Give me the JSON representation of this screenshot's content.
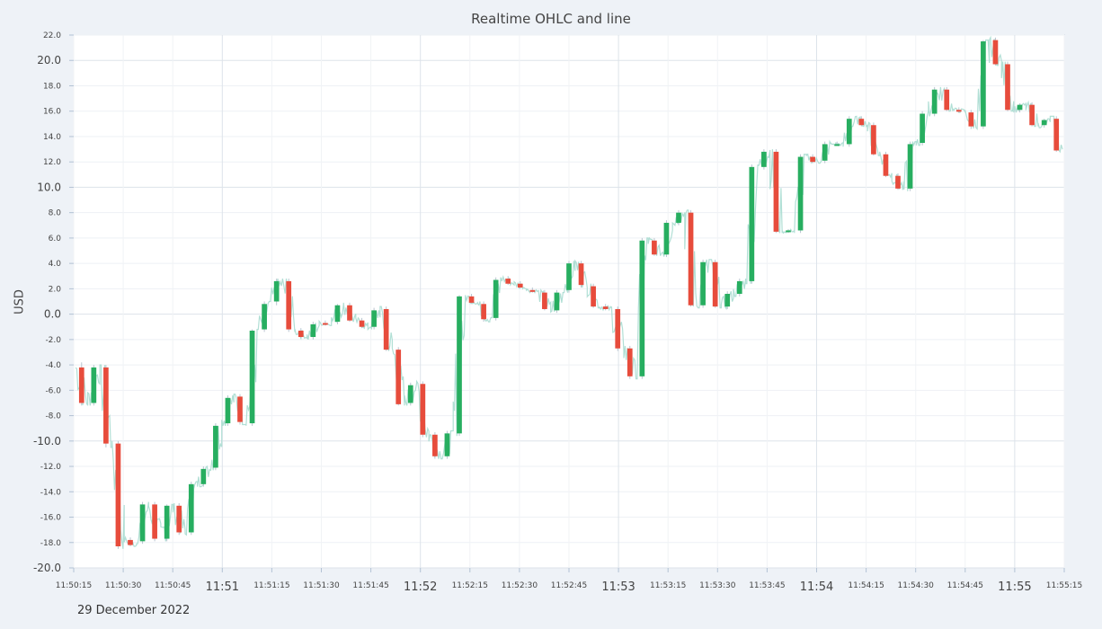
{
  "chart_data": {
    "type": "candlestick",
    "title": "Realtime OHLC and line",
    "ylabel": "USD",
    "xlabel": "",
    "date_label": "29 December 2022",
    "ylim": [
      -20,
      22
    ],
    "y_ticks_major": [
      "-20.0",
      "-10.0",
      "0.0",
      "10.0",
      "20.0"
    ],
    "y_ticks_minor": [
      "-18.0",
      "-16.0",
      "-14.0",
      "-12.0",
      "-8.0",
      "-6.0",
      "-4.0",
      "-2.0",
      "2.0",
      "4.0",
      "6.0",
      "8.0",
      "12.0",
      "14.0",
      "16.0",
      "18.0",
      "22.0"
    ],
    "x_range_seconds": [
      "11:50:15",
      "11:55:15"
    ],
    "x_ticks_major": [
      "11:51",
      "11:52",
      "11:53",
      "11:54",
      "11:55"
    ],
    "x_ticks_minor": [
      "11:50:15",
      "11:50:30",
      "11:50:45",
      "11:51:15",
      "11:51:30",
      "11:51:45",
      "11:52:15",
      "11:52:30",
      "11:52:45",
      "11:53:15",
      "11:53:30",
      "11:53:45",
      "11:54:15",
      "11:54:30",
      "11:54:45",
      "11:55:15"
    ],
    "up_color": "#27ae60",
    "down_color": "#e74c3c",
    "line_color": "#a8dcd0",
    "grid": true,
    "candles": [
      {
        "o": -4.2,
        "h": -3.8,
        "l": -7.2,
        "c": -7.0
      },
      {
        "o": -7.0,
        "h": -4.0,
        "l": -7.2,
        "c": -4.2
      },
      {
        "o": -4.2,
        "h": -4.0,
        "l": -10.5,
        "c": -10.2
      },
      {
        "o": -10.2,
        "h": -10.0,
        "l": -18.5,
        "c": -18.3
      },
      {
        "o": -17.8,
        "h": -17.6,
        "l": -18.3,
        "c": -18.2
      },
      {
        "o": -17.9,
        "h": -14.8,
        "l": -18.1,
        "c": -15.0
      },
      {
        "o": -15.0,
        "h": -14.8,
        "l": -17.9,
        "c": -17.7
      },
      {
        "o": -17.7,
        "h": -15.0,
        "l": -17.9,
        "c": -15.1
      },
      {
        "o": -15.1,
        "h": -14.9,
        "l": -17.4,
        "c": -17.2
      },
      {
        "o": -17.2,
        "h": -13.2,
        "l": -17.4,
        "c": -13.4
      },
      {
        "o": -13.4,
        "h": -12.0,
        "l": -13.6,
        "c": -12.2
      },
      {
        "o": -12.1,
        "h": -8.6,
        "l": -12.3,
        "c": -8.8
      },
      {
        "o": -8.6,
        "h": -6.4,
        "l": -8.8,
        "c": -6.6
      },
      {
        "o": -6.5,
        "h": -6.3,
        "l": -8.7,
        "c": -8.5
      },
      {
        "o": -8.6,
        "h": -1.2,
        "l": -8.8,
        "c": -1.3
      },
      {
        "o": -1.2,
        "h": 1.0,
        "l": -1.4,
        "c": 0.8
      },
      {
        "o": 1.0,
        "h": 2.8,
        "l": 0.7,
        "c": 2.6
      },
      {
        "o": 2.6,
        "h": 2.8,
        "l": -1.4,
        "c": -1.2
      },
      {
        "o": -1.3,
        "h": -1.1,
        "l": -1.9,
        "c": -1.8
      },
      {
        "o": -1.8,
        "h": -0.6,
        "l": -2.0,
        "c": -0.8
      },
      {
        "o": -0.7,
        "h": -0.5,
        "l": -0.9,
        "c": -0.8
      },
      {
        "o": -0.6,
        "h": 0.8,
        "l": -0.8,
        "c": 0.7
      },
      {
        "o": 0.7,
        "h": 0.9,
        "l": -0.6,
        "c": -0.5
      },
      {
        "o": -0.5,
        "h": -0.3,
        "l": -1.1,
        "c": -1.0
      },
      {
        "o": -1.0,
        "h": 0.5,
        "l": -1.2,
        "c": 0.3
      },
      {
        "o": 0.4,
        "h": 0.6,
        "l": -2.9,
        "c": -2.8
      },
      {
        "o": -2.8,
        "h": -2.6,
        "l": -7.2,
        "c": -7.1
      },
      {
        "o": -7.0,
        "h": -5.4,
        "l": -7.2,
        "c": -5.6
      },
      {
        "o": -5.5,
        "h": -5.3,
        "l": -9.7,
        "c": -9.5
      },
      {
        "o": -9.5,
        "h": -9.3,
        "l": -11.4,
        "c": -11.2
      },
      {
        "o": -11.2,
        "h": -9.2,
        "l": -11.4,
        "c": -9.4
      },
      {
        "o": -9.4,
        "h": 1.5,
        "l": -9.6,
        "c": 1.4
      },
      {
        "o": 1.4,
        "h": 1.6,
        "l": 0.8,
        "c": 0.9
      },
      {
        "o": 0.8,
        "h": 1.0,
        "l": -0.6,
        "c": -0.4
      },
      {
        "o": -0.3,
        "h": 2.9,
        "l": -0.5,
        "c": 2.7
      },
      {
        "o": 2.8,
        "h": 3.0,
        "l": 2.3,
        "c": 2.4
      },
      {
        "o": 2.4,
        "h": 2.6,
        "l": 2.0,
        "c": 2.1
      },
      {
        "o": 1.9,
        "h": 2.1,
        "l": 1.7,
        "c": 1.8
      },
      {
        "o": 1.7,
        "h": 1.9,
        "l": 0.3,
        "c": 0.4
      },
      {
        "o": 0.3,
        "h": 1.9,
        "l": 0.1,
        "c": 1.7
      },
      {
        "o": 1.9,
        "h": 4.2,
        "l": 1.7,
        "c": 4.0
      },
      {
        "o": 4.0,
        "h": 4.2,
        "l": 2.1,
        "c": 2.3
      },
      {
        "o": 2.2,
        "h": 2.4,
        "l": 0.5,
        "c": 0.6
      },
      {
        "o": 0.6,
        "h": 0.8,
        "l": 0.3,
        "c": 0.4
      },
      {
        "o": 0.4,
        "h": 0.6,
        "l": -2.9,
        "c": -2.7
      },
      {
        "o": -2.7,
        "h": -2.5,
        "l": -5.1,
        "c": -4.9
      },
      {
        "o": -4.9,
        "h": 6.0,
        "l": -5.1,
        "c": 5.8
      },
      {
        "o": 5.8,
        "h": 6.0,
        "l": 4.6,
        "c": 4.7
      },
      {
        "o": 4.7,
        "h": 7.4,
        "l": 4.5,
        "c": 7.2
      },
      {
        "o": 7.2,
        "h": 8.2,
        "l": 7.0,
        "c": 8.0
      },
      {
        "o": 8.0,
        "h": 8.2,
        "l": 0.6,
        "c": 0.7
      },
      {
        "o": 0.7,
        "h": 4.3,
        "l": 0.5,
        "c": 4.1
      },
      {
        "o": 4.1,
        "h": 4.3,
        "l": 0.5,
        "c": 0.6
      },
      {
        "o": 0.6,
        "h": 1.8,
        "l": 0.4,
        "c": 1.6
      },
      {
        "o": 1.6,
        "h": 2.8,
        "l": 1.4,
        "c": 2.6
      },
      {
        "o": 2.6,
        "h": 11.8,
        "l": 2.4,
        "c": 11.6
      },
      {
        "o": 11.6,
        "h": 13.0,
        "l": 11.4,
        "c": 12.8
      },
      {
        "o": 12.8,
        "h": 13.0,
        "l": 6.4,
        "c": 6.5
      },
      {
        "o": 6.5,
        "h": 6.7,
        "l": 6.4,
        "c": 6.6
      },
      {
        "o": 6.6,
        "h": 12.6,
        "l": 6.4,
        "c": 12.4
      },
      {
        "o": 12.4,
        "h": 12.6,
        "l": 11.9,
        "c": 12.0
      },
      {
        "o": 12.1,
        "h": 13.6,
        "l": 11.9,
        "c": 13.4
      },
      {
        "o": 13.4,
        "h": 13.6,
        "l": 13.3,
        "c": 13.4
      },
      {
        "o": 13.4,
        "h": 15.6,
        "l": 13.2,
        "c": 15.4
      },
      {
        "o": 15.4,
        "h": 15.6,
        "l": 14.8,
        "c": 14.9
      },
      {
        "o": 14.9,
        "h": 15.1,
        "l": 12.5,
        "c": 12.6
      },
      {
        "o": 12.6,
        "h": 12.8,
        "l": 10.8,
        "c": 10.9
      },
      {
        "o": 10.9,
        "h": 11.1,
        "l": 9.8,
        "c": 9.9
      },
      {
        "o": 9.9,
        "h": 13.6,
        "l": 9.7,
        "c": 13.4
      },
      {
        "o": 13.5,
        "h": 16.0,
        "l": 13.3,
        "c": 15.8
      },
      {
        "o": 15.8,
        "h": 17.9,
        "l": 15.6,
        "c": 17.7
      },
      {
        "o": 17.7,
        "h": 17.9,
        "l": 16.0,
        "c": 16.1
      },
      {
        "o": 16.1,
        "h": 16.3,
        "l": 15.9,
        "c": 16.0
      },
      {
        "o": 15.9,
        "h": 16.1,
        "l": 14.6,
        "c": 14.8
      },
      {
        "o": 14.8,
        "h": 21.6,
        "l": 14.6,
        "c": 21.5
      },
      {
        "o": 21.6,
        "h": 21.8,
        "l": 19.6,
        "c": 19.7
      },
      {
        "o": 19.7,
        "h": 19.9,
        "l": 16.0,
        "c": 16.1
      },
      {
        "o": 16.1,
        "h": 16.6,
        "l": 15.9,
        "c": 16.5
      },
      {
        "o": 16.5,
        "h": 16.7,
        "l": 14.8,
        "c": 14.9
      },
      {
        "o": 14.9,
        "h": 15.4,
        "l": 14.7,
        "c": 15.3
      },
      {
        "o": 15.4,
        "h": 15.6,
        "l": 12.8,
        "c": 12.9
      }
    ]
  }
}
